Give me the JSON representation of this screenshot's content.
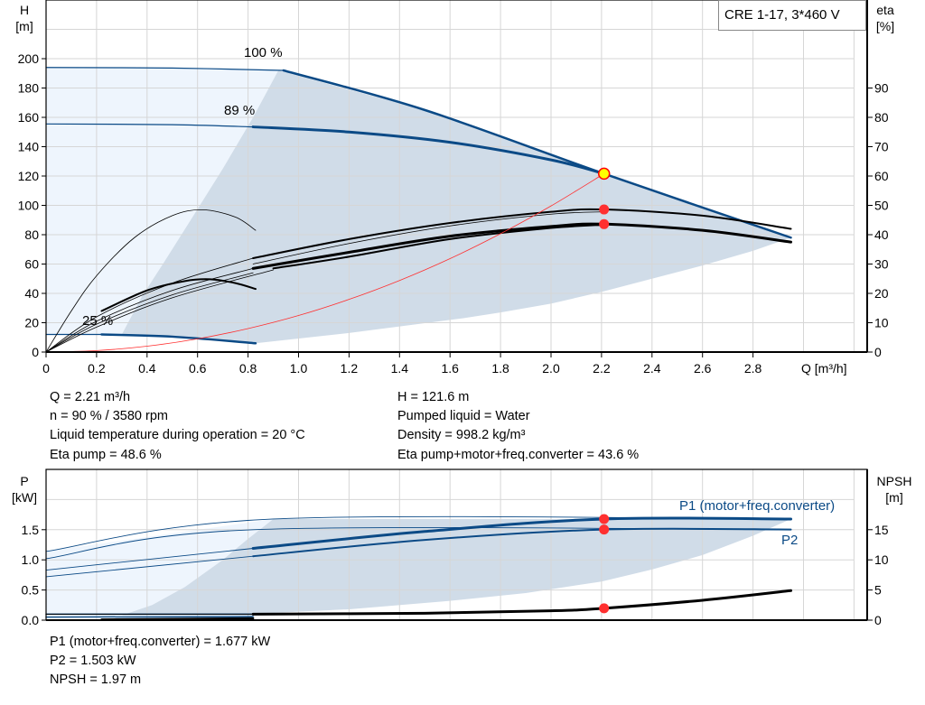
{
  "colors": {
    "curve_blue": "#0b4a86",
    "operating_area": "#d0dce8",
    "extended_area": "#eef5fd",
    "grid": "#d6d6d6",
    "duty_point": "#ffff00",
    "marker_red": "#ff0000",
    "system_curve": "#ff3030"
  },
  "legend": {
    "text": "CRE 1-17, 3*460 V"
  },
  "readouts_top": {
    "q": "Q = 2.21 m³/h",
    "n": "n = 90 % / 3580 rpm",
    "temp": "Liquid temperature during operation = 20 °C",
    "eta_pump": "Eta pump = 48.6 %",
    "h": "H = 121.6 m",
    "liquid": "Pumped liquid = Water",
    "density": "Density = 998.2 kg/m³",
    "eta_total": "Eta pump+motor+freq.converter = 43.6 %"
  },
  "readouts_bottom": {
    "p1": "P1 (motor+freq.converter) = 1.677 kW",
    "p2": "P2 = 1.503 kW",
    "npsh": "NPSH = 1.97 m"
  },
  "chart_data": [
    {
      "type": "line",
      "title": "",
      "ylabel_lines": [
        "H",
        "[m]"
      ],
      "y2label_lines": [
        "eta",
        "[%]"
      ],
      "xlabel": "Q [m³/h]",
      "xlim": [
        0,
        3.2
      ],
      "ylim": [
        0,
        240
      ],
      "y2lim": [
        0,
        120
      ],
      "xticks": [
        "0",
        "0.2",
        "0.4",
        "0.6",
        "0.8",
        "1.0",
        "1.2",
        "1.4",
        "1.6",
        "1.8",
        "2.0",
        "2.2",
        "2.4",
        "2.6",
        "2.8"
      ],
      "yticks": [
        "0",
        "20",
        "40",
        "60",
        "80",
        "100",
        "120",
        "140",
        "160",
        "180",
        "200"
      ],
      "y2ticks": [
        "0",
        "10",
        "20",
        "30",
        "40",
        "50",
        "60",
        "70",
        "80",
        "90"
      ],
      "grid": true,
      "curve_labels": [
        {
          "text": "100 %"
        },
        {
          "text": "89 %"
        },
        {
          "text": "25 %"
        }
      ],
      "areas": [
        {
          "name": "extended-range",
          "points": [
            [
              0,
              194
            ],
            [
              0.5,
              193.6
            ],
            [
              0.92,
              192
            ],
            [
              0.82,
              160
            ],
            [
              0.7,
              125
            ],
            [
              0.58,
              92
            ],
            [
              0.47,
              62
            ],
            [
              0.38,
              38
            ],
            [
              0.3,
              12
            ],
            [
              0,
              12
            ]
          ]
        },
        {
          "name": "operating-range",
          "points": [
            [
              0.92,
              192
            ],
            [
              1.5,
              165
            ],
            [
              2.21,
              121.6
            ],
            [
              2.95,
              78
            ],
            [
              2.8,
              69
            ],
            [
              2.6,
              59
            ],
            [
              2.4,
              50
            ],
            [
              2.2,
              41
            ],
            [
              2.0,
              33
            ],
            [
              1.8,
              27
            ],
            [
              1.65,
              23
            ],
            [
              1.2,
              13
            ],
            [
              0.83,
              6
            ],
            [
              0.5,
              10
            ],
            [
              0.3,
              12
            ],
            [
              0.38,
              38
            ],
            [
              0.47,
              62
            ],
            [
              0.58,
              92
            ],
            [
              0.7,
              125
            ],
            [
              0.82,
              160
            ]
          ]
        }
      ],
      "series": [
        {
          "id": "h-100-thin",
          "axis": "y",
          "width": 1.2,
          "color": "blue",
          "points": [
            [
              0,
              194
            ],
            [
              0.5,
              193.6
            ],
            [
              0.94,
              192
            ]
          ]
        },
        {
          "id": "h-100",
          "axis": "y",
          "width": 2.5,
          "color": "blue",
          "points": [
            [
              0.94,
              192
            ],
            [
              1.5,
              165
            ],
            [
              2.21,
              121.6
            ],
            [
              2.95,
              78
            ]
          ]
        },
        {
          "id": "h-89-thin",
          "axis": "y",
          "width": 1.2,
          "color": "blue",
          "points": [
            [
              0,
              155.5
            ],
            [
              0.5,
              155
            ],
            [
              0.82,
              153.5
            ]
          ]
        },
        {
          "id": "h-89",
          "axis": "y",
          "width": 3,
          "color": "blue",
          "points": [
            [
              0.82,
              153.5
            ],
            [
              1.2,
              150
            ],
            [
              1.6,
              143
            ],
            [
              2.0,
              131
            ],
            [
              2.21,
              121.6
            ]
          ]
        },
        {
          "id": "h-25-thin",
          "axis": "y",
          "width": 1.2,
          "color": "blue",
          "points": [
            [
              0,
              12
            ],
            [
              0.22,
              12
            ]
          ]
        },
        {
          "id": "h-25",
          "axis": "y",
          "width": 2.5,
          "color": "blue",
          "points": [
            [
              0.22,
              12
            ],
            [
              0.5,
              10.5
            ],
            [
              0.83,
              6
            ]
          ]
        },
        {
          "id": "eta-arc-thin",
          "axis": "y2",
          "width": 0.8,
          "color": "black",
          "points": [
            [
              0,
              0
            ],
            [
              0.1,
              14
            ],
            [
              0.2,
              26
            ],
            [
              0.35,
              39
            ],
            [
              0.5,
              46.5
            ],
            [
              0.62,
              48.5
            ],
            [
              0.75,
              46
            ],
            [
              0.83,
              41.5
            ]
          ]
        },
        {
          "id": "eta-arc",
          "axis": "y2",
          "width": 2,
          "color": "black",
          "points": [
            [
              0.22,
              14
            ],
            [
              0.4,
              21
            ],
            [
              0.55,
              24.2
            ],
            [
              0.65,
              24.8
            ],
            [
              0.75,
              23.5
            ],
            [
              0.83,
              21.5
            ]
          ]
        },
        {
          "id": "eta-thin-1",
          "axis": "y2",
          "width": 0.8,
          "color": "black",
          "points": [
            [
              0,
              0
            ],
            [
              0.2,
              12
            ],
            [
              0.5,
              23.5
            ],
            [
              0.82,
              32
            ]
          ]
        },
        {
          "id": "eta-thin-2",
          "axis": "y2",
          "width": 0.8,
          "color": "black",
          "points": [
            [
              0,
              0
            ],
            [
              0.2,
              10.5
            ],
            [
              0.5,
              21
            ],
            [
              0.82,
              28.5
            ]
          ]
        },
        {
          "id": "eta-thin-3",
          "axis": "y2",
          "width": 0.8,
          "color": "black",
          "points": [
            [
              0,
              0
            ],
            [
              0.2,
              9.5
            ],
            [
              0.5,
              19.5
            ],
            [
              0.82,
              27
            ]
          ]
        },
        {
          "id": "eta-thin-4",
          "axis": "y2",
          "width": 0.8,
          "color": "black",
          "points": [
            [
              0,
              0
            ],
            [
              0.2,
              8.5
            ],
            [
              0.5,
              18.5
            ],
            [
              0.9,
              28
            ]
          ]
        },
        {
          "id": "eta-pump",
          "axis": "y2",
          "width": 2,
          "color": "black",
          "points": [
            [
              0.82,
              32
            ],
            [
              1.2,
              38.5
            ],
            [
              1.6,
              44
            ],
            [
              2.0,
              47.8
            ],
            [
              2.21,
              48.6
            ],
            [
              2.6,
              46.5
            ],
            [
              2.95,
              42
            ]
          ]
        },
        {
          "id": "eta-pump-thin",
          "axis": "y2",
          "width": 0.8,
          "color": "black",
          "points": [
            [
              0.82,
              30
            ],
            [
              1.2,
              37
            ],
            [
              1.6,
              43
            ],
            [
              2.0,
              47
            ],
            [
              2.21,
              47.8
            ]
          ]
        },
        {
          "id": "eta-total",
          "axis": "y2",
          "width": 3,
          "color": "black",
          "points": [
            [
              0.82,
              28.5
            ],
            [
              1.2,
              34
            ],
            [
              1.6,
              39.5
            ],
            [
              2.0,
              42.8
            ],
            [
              2.21,
              43.6
            ],
            [
              2.6,
              41.5
            ],
            [
              2.95,
              37.5
            ]
          ]
        },
        {
          "id": "eta-total-2",
          "axis": "y2",
          "width": 2,
          "color": "black",
          "points": [
            [
              0.9,
              28.5
            ],
            [
              1.2,
              32.5
            ],
            [
              1.6,
              38.5
            ],
            [
              2.0,
              42.3
            ],
            [
              2.21,
              43.4
            ]
          ]
        },
        {
          "id": "system-curve",
          "axis": "y",
          "width": 0.8,
          "color": "red",
          "points": [
            [
              0,
              0
            ],
            [
              0.2,
              1
            ],
            [
              0.4,
              4
            ],
            [
              0.6,
              9
            ],
            [
              0.8,
              16
            ],
            [
              1.0,
              24.9
            ],
            [
              1.2,
              35.9
            ],
            [
              1.4,
              48.8
            ],
            [
              1.6,
              63.7
            ],
            [
              1.8,
              80.7
            ],
            [
              2.0,
              99.6
            ],
            [
              2.21,
              121.6
            ]
          ]
        }
      ],
      "markers": [
        {
          "id": "duty-point",
          "axis": "y",
          "x": 2.21,
          "y": 121.6,
          "fill": "yellow"
        },
        {
          "id": "eta-pump-point",
          "axis": "y2",
          "x": 2.21,
          "y": 48.6,
          "fill": "red"
        },
        {
          "id": "eta-total-point",
          "axis": "y2",
          "x": 2.21,
          "y": 43.6,
          "fill": "red"
        }
      ]
    },
    {
      "type": "line",
      "title": "",
      "ylabel_lines": [
        "P",
        "[kW]"
      ],
      "y2label_lines": [
        "NPSH",
        "[m]"
      ],
      "xlim": [
        0,
        3.2
      ],
      "ylim": [
        0,
        2.5
      ],
      "y2lim": [
        0,
        25
      ],
      "yticks": [
        "0.0",
        "0.5",
        "1.0",
        "1.5"
      ],
      "y2ticks": [
        "0",
        "5",
        "10",
        "15"
      ],
      "grid": true,
      "series_labels": [
        {
          "text": "P1 (motor+freq.converter)"
        },
        {
          "text": "P2"
        }
      ],
      "areas": [
        {
          "name": "extended-range",
          "points": [
            [
              0,
              1.14
            ],
            [
              0.9,
              1.677
            ],
            [
              0.8,
              1.35
            ],
            [
              0.7,
              1.0
            ],
            [
              0.55,
              0.55
            ],
            [
              0.42,
              0.25
            ],
            [
              0.3,
              0.08
            ],
            [
              0,
              0.1
            ]
          ]
        },
        {
          "name": "operating-range",
          "points": [
            [
              0.9,
              1.677
            ],
            [
              2.95,
              1.677
            ],
            [
              2.8,
              1.4
            ],
            [
              2.6,
              1.08
            ],
            [
              2.4,
              0.84
            ],
            [
              2.2,
              0.64
            ],
            [
              1.9,
              0.45
            ],
            [
              1.6,
              0.32
            ],
            [
              1.2,
              0.18
            ],
            [
              0.8,
              0.1
            ],
            [
              0.3,
              0.08
            ],
            [
              0.42,
              0.25
            ],
            [
              0.55,
              0.55
            ],
            [
              0.7,
              1.0
            ],
            [
              0.8,
              1.35
            ]
          ]
        }
      ],
      "series": [
        {
          "id": "p1-thin",
          "axis": "y",
          "width": 0.9,
          "color": "blue",
          "points": [
            [
              0,
              1.14
            ],
            [
              0.9,
              1.677
            ],
            [
              2.95,
              1.677
            ]
          ]
        },
        {
          "id": "p1",
          "axis": "y",
          "width": 3,
          "color": "blue",
          "points": [
            [
              0.82,
              1.19
            ],
            [
              1.5,
              1.47
            ],
            [
              2.21,
              1.677
            ],
            [
              2.95,
              1.677
            ]
          ]
        },
        {
          "id": "p2-thin",
          "axis": "y",
          "width": 0.9,
          "color": "blue",
          "points": [
            [
              0,
              1.02
            ],
            [
              0.82,
              1.5
            ],
            [
              2.95,
              1.5
            ]
          ]
        },
        {
          "id": "p2",
          "axis": "y",
          "width": 2,
          "color": "blue",
          "points": [
            [
              0.82,
              1.06
            ],
            [
              1.5,
              1.33
            ],
            [
              2.21,
              1.503
            ],
            [
              2.95,
              1.503
            ]
          ]
        },
        {
          "id": "p1-low-thin",
          "axis": "y",
          "width": 0.9,
          "color": "blue",
          "points": [
            [
              0,
              0.83
            ],
            [
              0.82,
              1.19
            ]
          ]
        },
        {
          "id": "p2-low-thin",
          "axis": "y",
          "width": 0.9,
          "color": "blue",
          "points": [
            [
              0,
              0.72
            ],
            [
              0.82,
              1.06
            ]
          ]
        },
        {
          "id": "p-low-1",
          "axis": "y",
          "width": 1.5,
          "color": "blue",
          "points": [
            [
              0,
              0.1
            ],
            [
              0.82,
              0.1
            ]
          ]
        },
        {
          "id": "p-low-2",
          "axis": "y",
          "width": 1.5,
          "color": "blue",
          "points": [
            [
              0,
              0.05
            ],
            [
              0.82,
              0.06
            ]
          ]
        },
        {
          "id": "npsh-thin",
          "axis": "y2",
          "width": 1,
          "color": "black",
          "points": [
            [
              0,
              1.0
            ],
            [
              0.82,
              1.0
            ]
          ]
        },
        {
          "id": "npsh-low",
          "axis": "y2",
          "width": 2.5,
          "color": "black",
          "points": [
            [
              0.22,
              0.1
            ],
            [
              0.82,
              0.3
            ]
          ]
        },
        {
          "id": "npsh",
          "axis": "y2",
          "width": 3,
          "color": "black",
          "points": [
            [
              0.82,
              1.0
            ],
            [
              1.5,
              1.15
            ],
            [
              2.0,
              1.55
            ],
            [
              2.21,
              1.97
            ],
            [
              2.6,
              3.3
            ],
            [
              2.95,
              4.9
            ]
          ]
        }
      ],
      "markers": [
        {
          "id": "p1-point",
          "axis": "y",
          "x": 2.21,
          "y": 1.677,
          "fill": "red"
        },
        {
          "id": "p2-point",
          "axis": "y",
          "x": 2.21,
          "y": 1.503,
          "fill": "red"
        },
        {
          "id": "npsh-point",
          "axis": "y2",
          "x": 2.21,
          "y": 1.97,
          "fill": "red"
        }
      ]
    }
  ]
}
